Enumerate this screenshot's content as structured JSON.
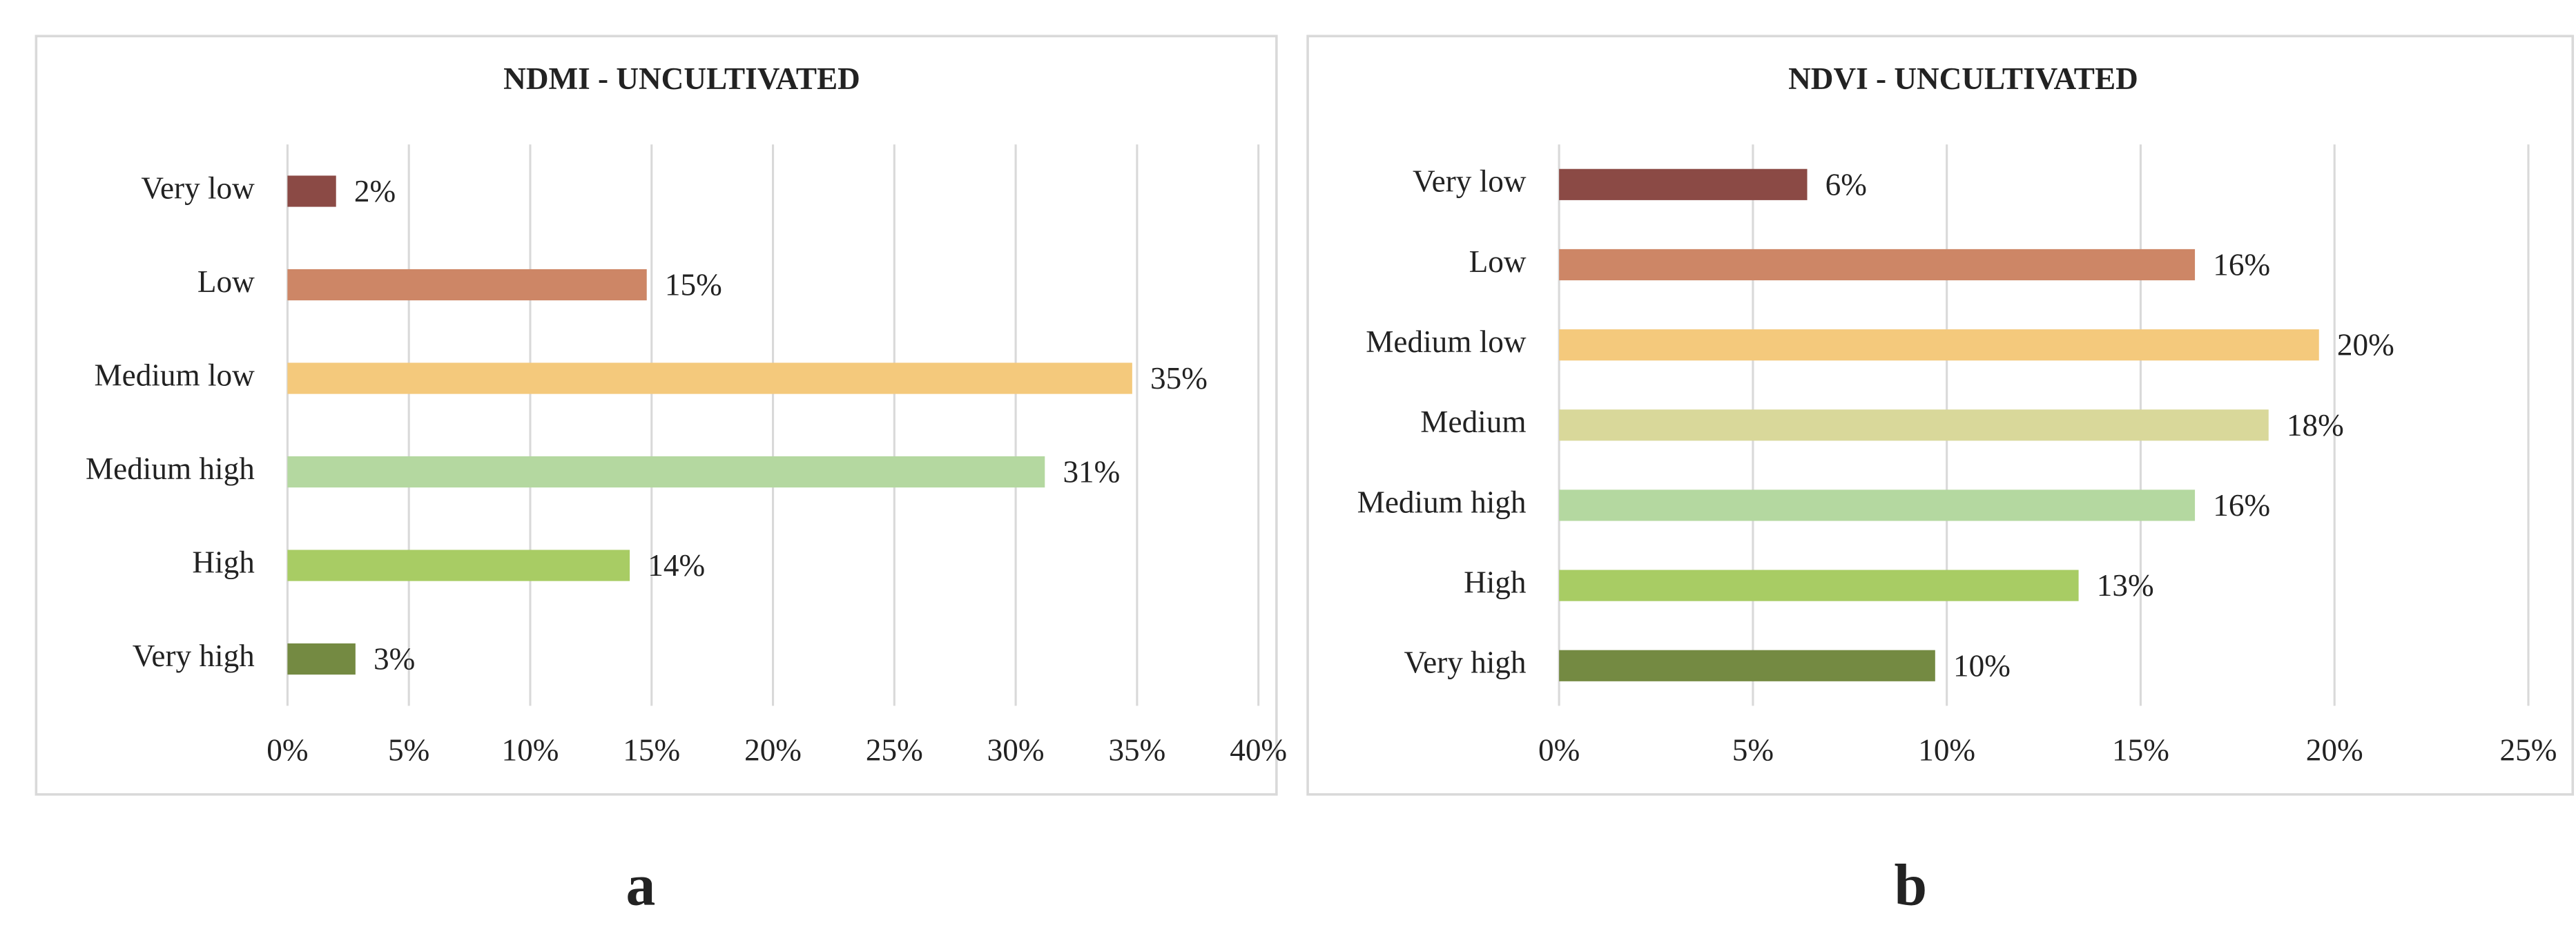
{
  "chart_data": [
    {
      "type": "bar",
      "orientation": "horizontal",
      "title": "NDMI - UNCULTIVATED",
      "panel_label": "a",
      "categories": [
        "Very low",
        "Low",
        "Medium low",
        "Medium high",
        "High",
        "Very high"
      ],
      "values": [
        2,
        14.8,
        34.8,
        31.2,
        14.1,
        2.8
      ],
      "value_labels": [
        "2%",
        "15%",
        "35%",
        "31%",
        "14%",
        "3%"
      ],
      "colors": [
        "#8b4a45",
        "#cd8666",
        "#f4c97c",
        "#b4d8a0",
        "#a8cc64",
        "#748a42"
      ],
      "xlim": [
        0,
        40
      ],
      "xticks": [
        {
          "value": 0,
          "label": "0%"
        },
        {
          "value": 5,
          "label": "5%"
        },
        {
          "value": 10,
          "label": "10%"
        },
        {
          "value": 15,
          "label": "15%"
        },
        {
          "value": 20,
          "label": "20%"
        },
        {
          "value": 25,
          "label": "25%"
        },
        {
          "value": 30,
          "label": "30%"
        },
        {
          "value": 35,
          "label": "35%"
        },
        {
          "value": 40,
          "label": "40%"
        }
      ],
      "grid": true
    },
    {
      "type": "bar",
      "orientation": "horizontal",
      "title": "NDVI - UNCULTIVATED",
      "panel_label": "b",
      "categories": [
        "Very low",
        "Low",
        "Medium low",
        "Medium",
        "Medium high",
        "High",
        "Very high"
      ],
      "values": [
        6.4,
        16.4,
        19.6,
        18.3,
        16.4,
        13.4,
        9.7
      ],
      "value_labels": [
        "6%",
        "16%",
        "20%",
        "18%",
        "16%",
        "13%",
        "10%"
      ],
      "colors": [
        "#8b4a45",
        "#cd8666",
        "#f4c97c",
        "#d9d89a",
        "#b4d8a0",
        "#a8cc64",
        "#748a42"
      ],
      "xlim": [
        0,
        25
      ],
      "xticks": [
        {
          "value": 0,
          "label": "0%"
        },
        {
          "value": 5,
          "label": "5%"
        },
        {
          "value": 10,
          "label": "10%"
        },
        {
          "value": 15,
          "label": "15%"
        },
        {
          "value": 20,
          "label": "20%"
        },
        {
          "value": 25,
          "label": "25%"
        }
      ],
      "grid": true
    }
  ]
}
